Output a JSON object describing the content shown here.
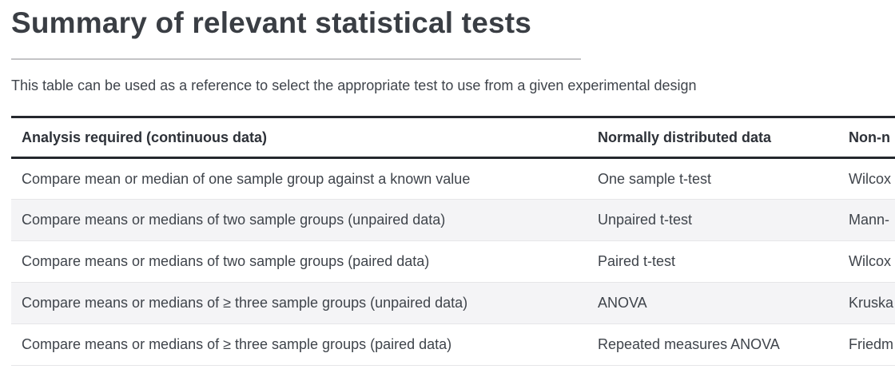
{
  "page": {
    "title": "Summary of relevant statistical tests",
    "subtitle": "This table can be used as a reference to select the appropriate test to use from a given experimental design"
  },
  "table": {
    "columns": {
      "analysis": "Analysis required (continuous data)",
      "normal": "Normally distributed data",
      "nonnormal_clipped": "Non-n"
    },
    "rows": [
      {
        "analysis": "Compare mean or median of one sample group against a known value",
        "normal": "One sample t-test",
        "nonnormal_clipped": "Wilcox"
      },
      {
        "analysis": "Compare means or medians of two sample groups (unpaired data)",
        "normal": "Unpaired t-test",
        "nonnormal_clipped": "Mann-"
      },
      {
        "analysis": "Compare means or medians of two sample groups (paired data)",
        "normal": "Paired t-test",
        "nonnormal_clipped": "Wilcox"
      },
      {
        "analysis": "Compare means or medians of ≥ three sample groups (unpaired data)",
        "normal": "ANOVA",
        "nonnormal_clipped": "Kruska"
      },
      {
        "analysis": "Compare means or medians of ≥ three sample groups (paired data)",
        "normal": "Repeated measures ANOVA",
        "nonnormal_clipped": "Friedm"
      }
    ]
  },
  "colors": {
    "title_text": "#3a3e44",
    "body_text": "#3f444b",
    "header_text": "#2d3138",
    "table_dark_border": "#24272d",
    "row_stripe": "#f4f4f6",
    "row_separator": "#e6e6e8",
    "title_rule": "#c4c4c6"
  }
}
